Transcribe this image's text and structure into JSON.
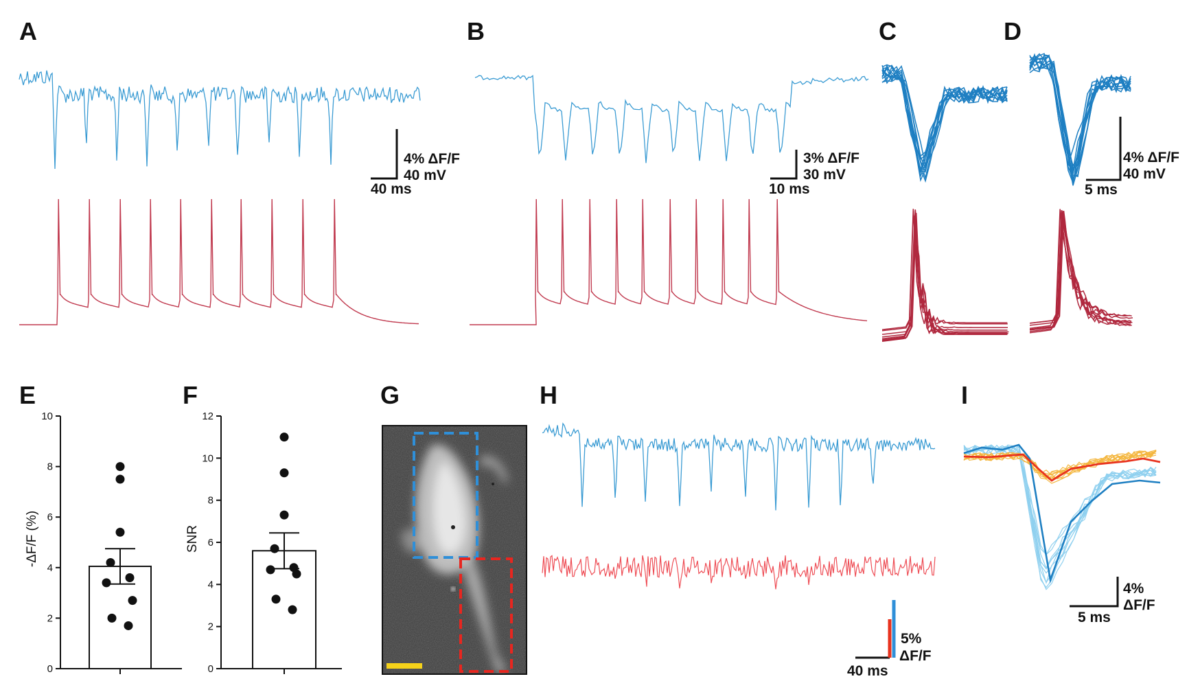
{
  "colors": {
    "voltage_blue": "#3a9bd3",
    "ephys_red": "#c0394e",
    "overlay_blue": "#1e7fc2",
    "overlay_red": "#b0283e",
    "light_blue": "#8fd0ef",
    "orange": "#f4b740",
    "mean_red": "#e8321e",
    "noise_red": "#ee4c54",
    "roi_blue": "#2f8fd8",
    "roi_red": "#e8261f",
    "scalebar_yellow": "#f5d21a"
  },
  "panels": {
    "A": {
      "label": "A",
      "scalebar": {
        "y1": "4% ΔF/F",
        "y2": "40 mV",
        "x": "40 ms"
      }
    },
    "B": {
      "label": "B",
      "scalebar": {
        "y1": "3% ΔF/F",
        "y2": "30 mV",
        "x": "10 ms"
      }
    },
    "C": {
      "label": "C"
    },
    "D": {
      "label": "D",
      "scalebar": {
        "y1": "4% ΔF/F",
        "y2": "40 mV",
        "x": "5 ms"
      }
    },
    "E": {
      "label": "E"
    },
    "F": {
      "label": "F"
    },
    "G": {
      "label": "G"
    },
    "H": {
      "label": "H",
      "scalebar": {
        "y1": "5%",
        "y2": "ΔF/F",
        "x": "40 ms"
      }
    },
    "I": {
      "label": "I",
      "scalebar": {
        "y1": "4%",
        "y2": "ΔF/F",
        "x": "5 ms"
      }
    }
  },
  "chart_data": [
    {
      "id": "E",
      "type": "bar",
      "ylabel": "-ΔF/F (%)",
      "ylim": [
        0,
        10
      ],
      "yticks": [
        "0",
        "2",
        "4",
        "6",
        "8",
        "10"
      ],
      "mean": 4.05,
      "sem": 0.7,
      "points": [
        8.0,
        7.5,
        5.4,
        4.2,
        3.6,
        3.4,
        2.7,
        2.0,
        1.7
      ]
    },
    {
      "id": "F",
      "type": "bar",
      "ylabel": "SNR",
      "ylim": [
        0,
        12
      ],
      "yticks": [
        "0",
        "2",
        "4",
        "6",
        "8",
        "10",
        "12"
      ],
      "mean": 5.6,
      "sem": 0.85,
      "points": [
        11.0,
        9.3,
        7.3,
        5.7,
        4.8,
        4.7,
        4.5,
        3.3,
        2.8
      ]
    }
  ]
}
